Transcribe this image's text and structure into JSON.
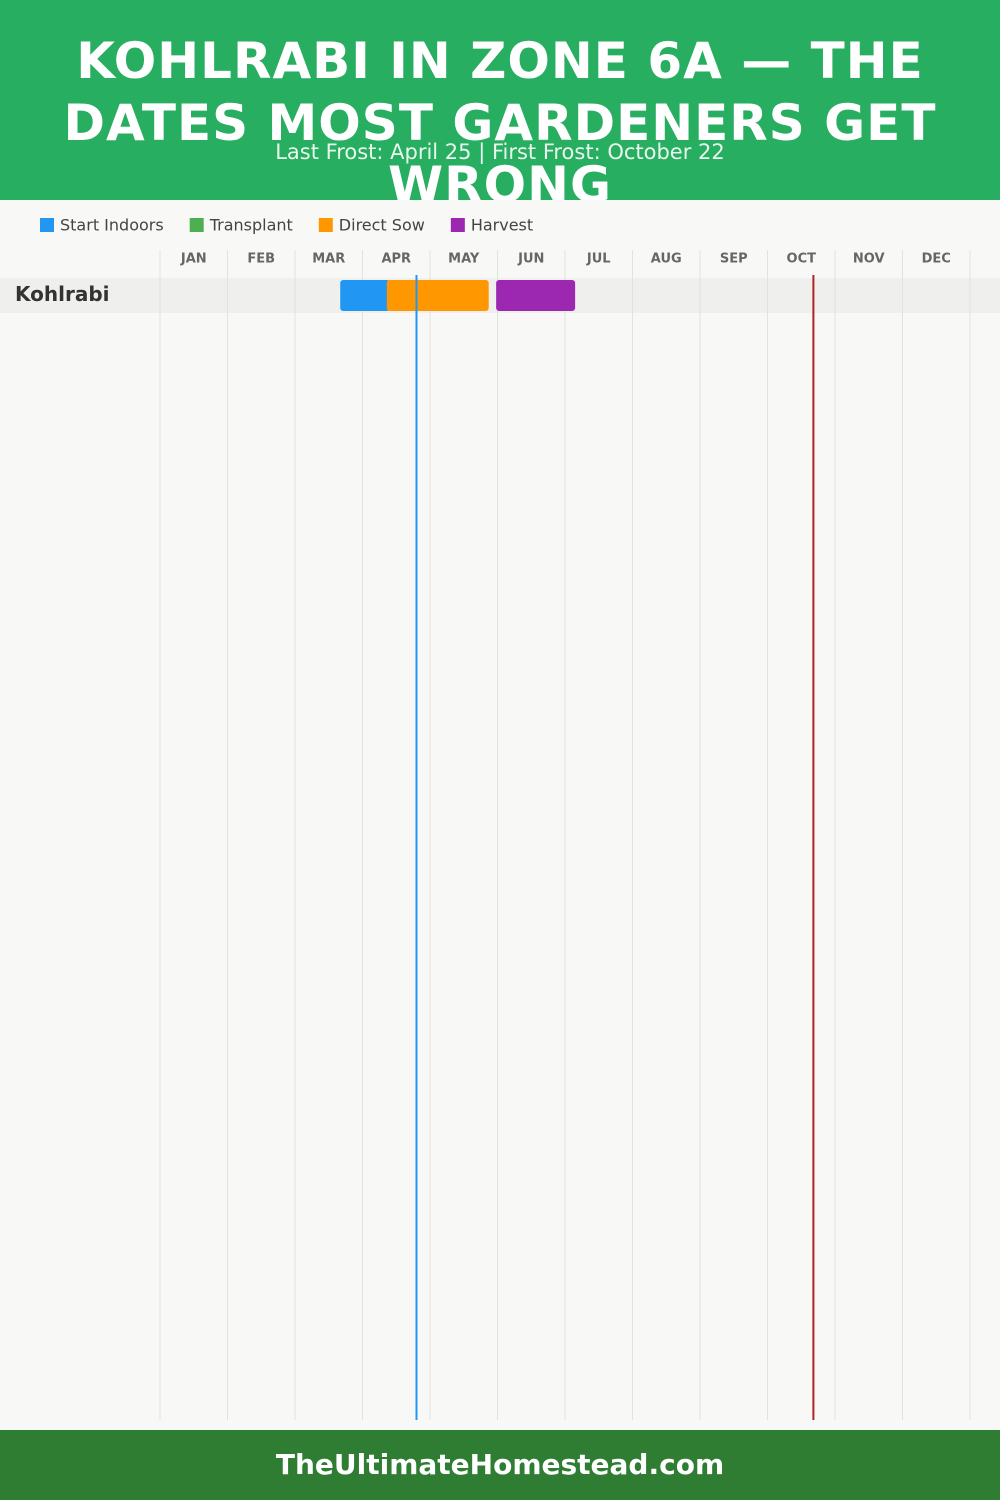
{
  "chart_data": {
    "type": "gantt",
    "title": "KOHLRABI IN ZONE 6A — THE DATES MOST GARDENERS GET WRONG",
    "subtitle": "Last Frost: April 25 | First Frost: October 22",
    "categories": [
      "JAN",
      "FEB",
      "MAR",
      "APR",
      "MAY",
      "JUN",
      "JUL",
      "AUG",
      "SEP",
      "OCT",
      "NOV",
      "DEC"
    ],
    "xlim": [
      0,
      12
    ],
    "rows": [
      "Kohlrabi"
    ],
    "series": [
      {
        "name": "Start Indoors",
        "color": "#2196f3",
        "start": [
          2.67
        ],
        "end": [
          3.41
        ]
      },
      {
        "name": "Transplant",
        "color": "#4caf50",
        "start": [
          null
        ],
        "end": [
          null
        ]
      },
      {
        "name": "Direct Sow",
        "color": "#ff9800",
        "start": [
          3.36
        ],
        "end": [
          4.87
        ]
      },
      {
        "name": "Harvest",
        "color": "#9c27b0",
        "start": [
          4.98
        ],
        "end": [
          6.15
        ]
      }
    ],
    "frost_lines": [
      {
        "x": 3.8,
        "color": "#2196f3"
      },
      {
        "x": 9.68,
        "color": "#b22222"
      }
    ]
  },
  "footer": "TheUltimateHomestead.com"
}
